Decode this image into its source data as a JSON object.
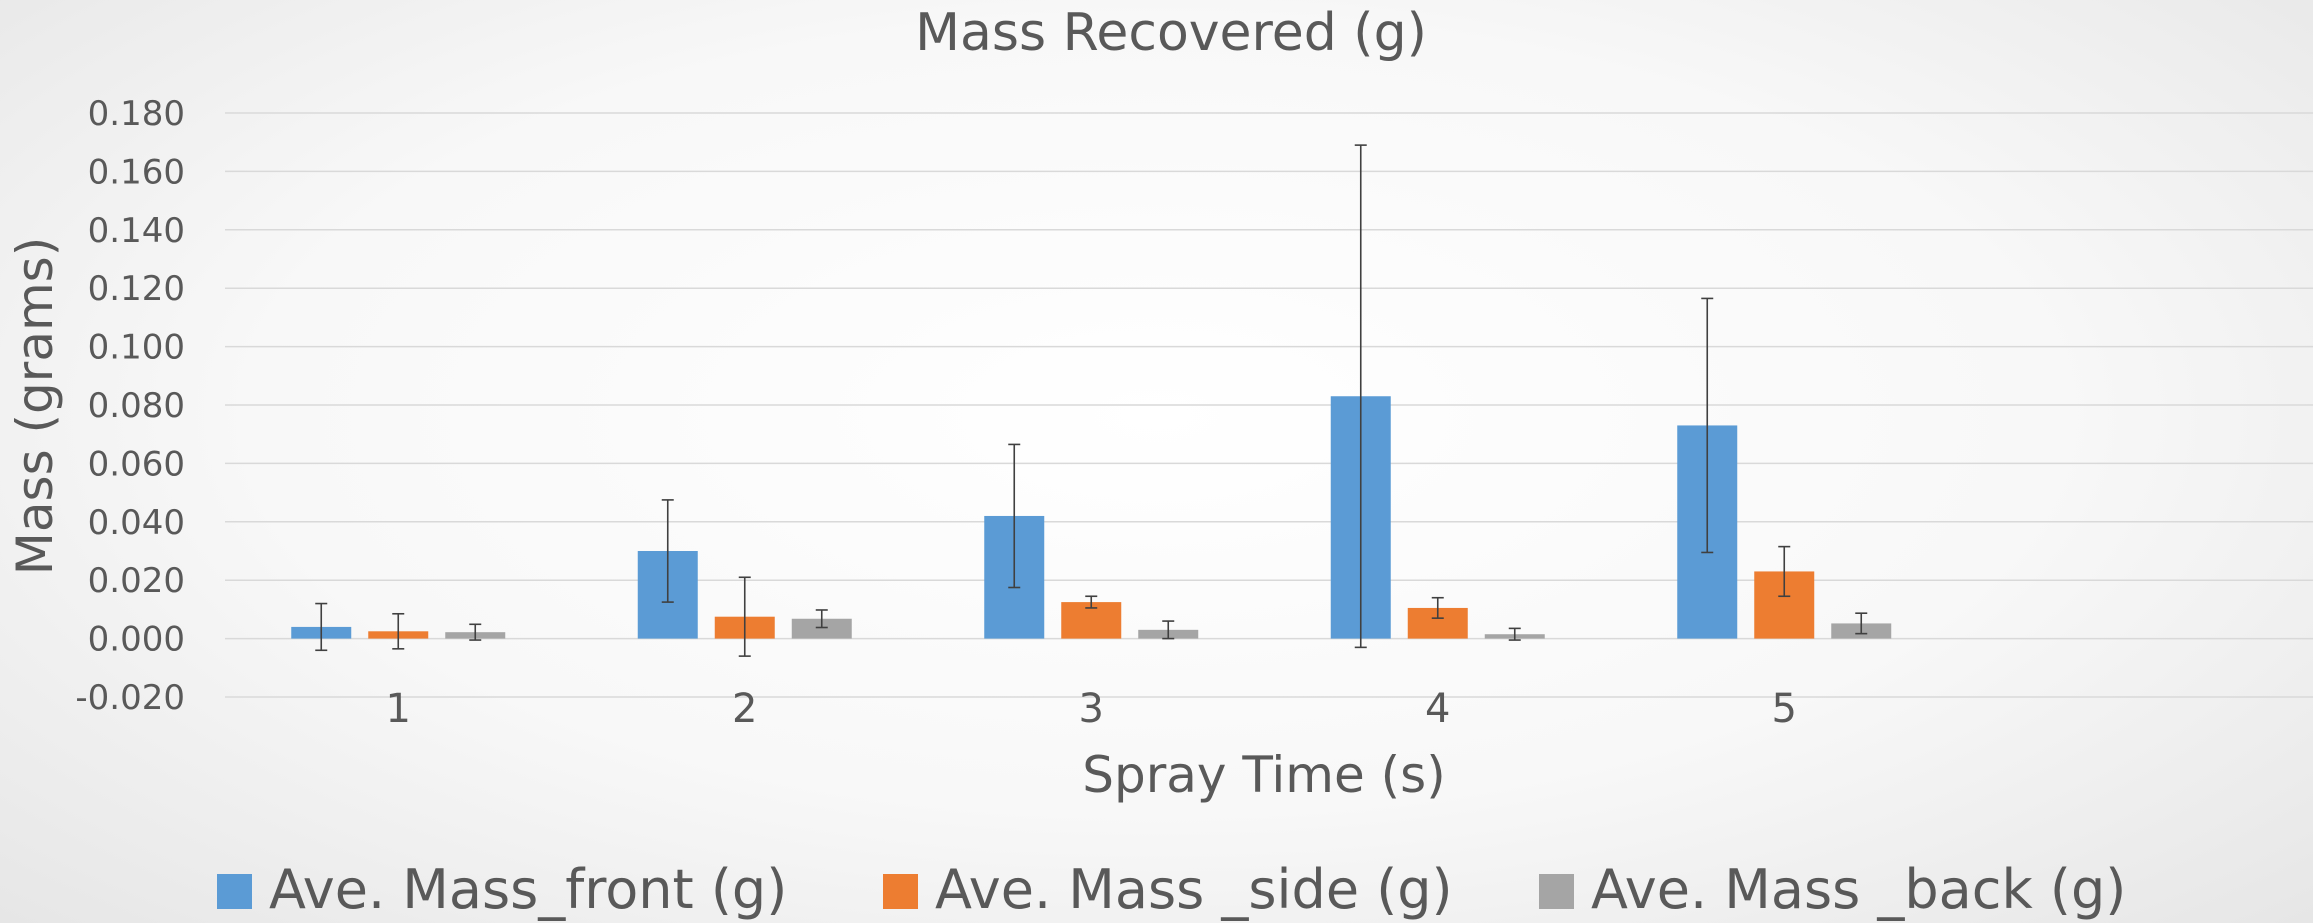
{
  "chart_data": {
    "type": "bar",
    "title": "Mass Recovered (g)",
    "xlabel": "Spray Time (s)",
    "ylabel": "Mass (grams)",
    "categories": [
      "1",
      "2",
      "3",
      "4",
      "5"
    ],
    "ylim": [
      -0.02,
      0.18
    ],
    "yticks": [
      {
        "value": -0.02,
        "label": "-0.020"
      },
      {
        "value": 0.0,
        "label": "0.000"
      },
      {
        "value": 0.02,
        "label": "0.020"
      },
      {
        "value": 0.04,
        "label": "0.040"
      },
      {
        "value": 0.06,
        "label": "0.060"
      },
      {
        "value": 0.08,
        "label": "0.080"
      },
      {
        "value": 0.1,
        "label": "0.100"
      },
      {
        "value": 0.12,
        "label": "0.120"
      },
      {
        "value": 0.14,
        "label": "0.140"
      },
      {
        "value": 0.16,
        "label": "0.160"
      },
      {
        "value": 0.18,
        "label": "0.180"
      }
    ],
    "grid": true,
    "legend_position": "bottom",
    "series": [
      {
        "name": "Ave. Mass_front (g)",
        "color": "#5b9bd5",
        "values": [
          0.004,
          0.03,
          0.042,
          0.083,
          0.073
        ],
        "errors": [
          0.008,
          0.0175,
          0.0245,
          0.086,
          0.0435
        ]
      },
      {
        "name": "Ave. Mass _side (g)",
        "color": "#ed7d31",
        "values": [
          0.0025,
          0.0075,
          0.0125,
          0.0105,
          0.023
        ],
        "errors": [
          0.006,
          0.0135,
          0.002,
          0.0035,
          0.0085
        ]
      },
      {
        "name": "Ave. Mass _back (g)",
        "color": "#a5a5a5",
        "values": [
          0.0022,
          0.0068,
          0.003,
          0.0015,
          0.0052
        ],
        "errors": [
          0.0027,
          0.003,
          0.003,
          0.002,
          0.0035
        ]
      }
    ]
  }
}
